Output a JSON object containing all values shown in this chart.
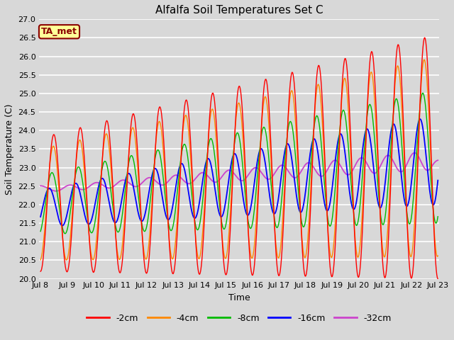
{
  "title": "Alfalfa Soil Temperatures Set C",
  "xlabel": "Time",
  "ylabel": "Soil Temperature (C)",
  "ylim": [
    20.0,
    27.0
  ],
  "yticks": [
    20.0,
    20.5,
    21.0,
    21.5,
    22.0,
    22.5,
    23.0,
    23.5,
    24.0,
    24.5,
    25.0,
    25.5,
    26.0,
    26.5,
    27.0
  ],
  "series_colors": {
    "-2cm": "#ff0000",
    "-4cm": "#ff8800",
    "-8cm": "#00bb00",
    "-16cm": "#0000ff",
    "-32cm": "#cc44cc"
  },
  "series_lw": {
    "-2cm": 1.0,
    "-4cm": 1.0,
    "-8cm": 1.0,
    "-16cm": 1.3,
    "-32cm": 1.3
  },
  "background_color": "#d8d8d8",
  "plot_area_color": "#d8d8d8",
  "grid_color": "#ffffff",
  "title_fontsize": 11,
  "axis_label_fontsize": 9,
  "tick_fontsize": 8,
  "legend_label": "TA_met",
  "legend_box_color": "#ffff99",
  "legend_text_color": "#8b0000",
  "legend_box_edge_color": "#8b0000",
  "n_points": 720,
  "x_start_day": 8,
  "x_end_day": 23,
  "xtick_days": [
    8,
    9,
    10,
    11,
    12,
    13,
    14,
    15,
    16,
    17,
    18,
    19,
    20,
    21,
    22,
    23
  ],
  "xtick_labels": [
    "Jul 8",
    "Jul 9",
    "Jul 10",
    "Jul 11",
    "Jul 12",
    "Jul 13",
    "Jul 14",
    "Jul 15",
    "Jul 16",
    "Jul 17",
    "Jul 18",
    "Jul 19",
    "Jul 20",
    "Jul 21",
    "Jul 22",
    "Jul 23"
  ]
}
